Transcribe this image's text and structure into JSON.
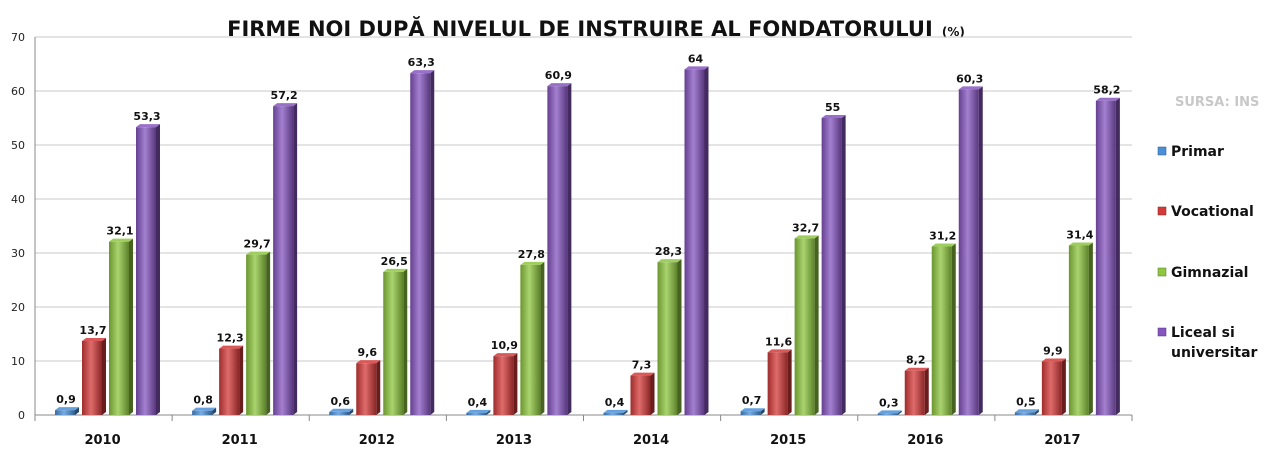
{
  "chart_data": {
    "type": "bar",
    "title": "FIRME NOI DUPĂ NIVELUL DE INSTRUIRE AL FONDATORULUI",
    "title_unit": "(%)",
    "source": "SURSA: INS",
    "categories": [
      "2010",
      "2011",
      "2012",
      "2013",
      "2014",
      "2015",
      "2016",
      "2017"
    ],
    "ylim": [
      0,
      70
    ],
    "yticks": [
      "0",
      "10",
      "20",
      "30",
      "40",
      "50",
      "60",
      "70"
    ],
    "grid": true,
    "legend_position": "right",
    "series": [
      {
        "name": "Primar",
        "color": "#4a90d9",
        "values": [
          0.9,
          0.8,
          0.6,
          0.4,
          0.4,
          0.7,
          0.3,
          0.5
        ],
        "labels": [
          "0,9",
          "0,8",
          "0,6",
          "0,4",
          "0,4",
          "0,7",
          "0,3",
          "0,5"
        ]
      },
      {
        "name": "Vocational",
        "color": "#d43a3a",
        "values": [
          13.7,
          12.3,
          9.6,
          10.9,
          7.3,
          11.6,
          8.2,
          9.9
        ],
        "labels": [
          "13,7",
          "12,3",
          "9,6",
          "10,9",
          "7,3",
          "11,6",
          "8,2",
          "9,9"
        ]
      },
      {
        "name": "Gimnazial",
        "color": "#8dc63f",
        "values": [
          32.1,
          29.7,
          26.5,
          27.8,
          28.3,
          32.7,
          31.2,
          31.4
        ],
        "labels": [
          "32,1",
          "29,7",
          "26,5",
          "27,8",
          "28,3",
          "32,7",
          "31,2",
          "31,4"
        ]
      },
      {
        "name": "Liceal si universitar",
        "color": "#8655c0",
        "legend_lines": [
          "Liceal si",
          "universitar"
        ],
        "values": [
          53.3,
          57.2,
          63.3,
          60.9,
          64,
          55,
          60.3,
          58.2
        ],
        "labels": [
          "53,3",
          "57,2",
          "63,3",
          "60,9",
          "64",
          "55",
          "60,3",
          "58,2"
        ]
      }
    ]
  }
}
